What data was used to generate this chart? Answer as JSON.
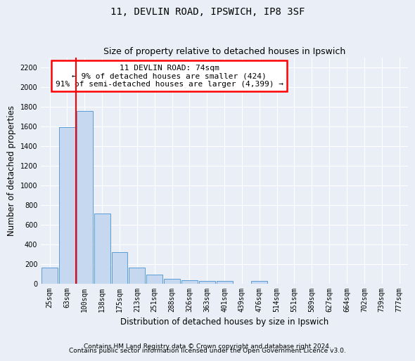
{
  "title1": "11, DEVLIN ROAD, IPSWICH, IP8 3SF",
  "title2": "Size of property relative to detached houses in Ipswich",
  "xlabel": "Distribution of detached houses by size in Ipswich",
  "ylabel": "Number of detached properties",
  "footnote1": "Contains HM Land Registry data © Crown copyright and database right 2024.",
  "footnote2": "Contains public sector information licensed under the Open Government Licence v3.0.",
  "categories": [
    "25sqm",
    "63sqm",
    "100sqm",
    "138sqm",
    "175sqm",
    "213sqm",
    "251sqm",
    "288sqm",
    "326sqm",
    "363sqm",
    "401sqm",
    "439sqm",
    "476sqm",
    "514sqm",
    "551sqm",
    "589sqm",
    "627sqm",
    "664sqm",
    "702sqm",
    "739sqm",
    "777sqm"
  ],
  "values": [
    160,
    1590,
    1760,
    710,
    320,
    160,
    90,
    50,
    35,
    25,
    25,
    0,
    25,
    0,
    0,
    0,
    0,
    0,
    0,
    0,
    0
  ],
  "bar_color": "#c5d8f0",
  "bar_edge_color": "#5b9bd5",
  "property_line_x": 1.5,
  "annotation_text": "11 DEVLIN ROAD: 74sqm\n← 9% of detached houses are smaller (424)\n91% of semi-detached houses are larger (4,399) →",
  "annotation_box_color": "white",
  "annotation_box_edge": "red",
  "ylim": [
    0,
    2300
  ],
  "yticks": [
    0,
    200,
    400,
    600,
    800,
    1000,
    1200,
    1400,
    1600,
    1800,
    2000,
    2200
  ],
  "bg_color": "#eaeff7",
  "plot_bg_color": "#eaeff7",
  "grid_color": "white",
  "title_fontsize": 10,
  "subtitle_fontsize": 9,
  "axis_label_fontsize": 8.5,
  "tick_fontsize": 7,
  "annotation_fontsize": 8,
  "footnote_fontsize": 6.5
}
